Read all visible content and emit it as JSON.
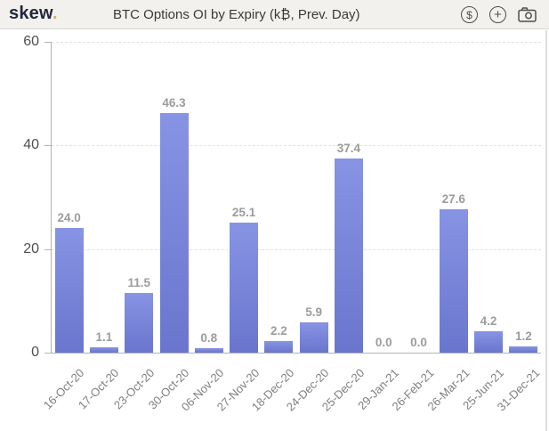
{
  "header": {
    "logo_text": "skew",
    "logo_dot": ".",
    "title": "BTC Options OI by Expiry (k₿, Prev. Day)",
    "icons": [
      {
        "name": "dollar-circle-icon",
        "glyph": "$"
      },
      {
        "name": "plus-circle-icon",
        "glyph": "+"
      },
      {
        "name": "camera-icon"
      }
    ]
  },
  "chart_data": {
    "type": "bar",
    "title": "BTC Options OI by Expiry (k₿, Prev. Day)",
    "categories": [
      "16-Oct-20",
      "17-Oct-20",
      "23-Oct-20",
      "30-Oct-20",
      "06-Nov-20",
      "27-Nov-20",
      "18-Dec-20",
      "24-Dec-20",
      "25-Dec-20",
      "29-Jan-21",
      "26-Feb-21",
      "26-Mar-21",
      "25-Jun-21",
      "31-Dec-21"
    ],
    "values": [
      24.0,
      1.1,
      11.5,
      46.3,
      0.8,
      25.1,
      2.2,
      5.9,
      37.4,
      0.0,
      0.0,
      27.6,
      4.2,
      1.2
    ],
    "value_decimals": 1,
    "xlabel": "",
    "ylabel": "",
    "ylim": [
      0,
      60
    ],
    "yticks": [
      0,
      20,
      40,
      60
    ],
    "grid": "horizontal-dashed",
    "legend": "none",
    "bar_color": "#7b87da",
    "bar_gradient_top": "#8793e3",
    "bar_gradient_bottom": "#6a76cd",
    "value_label_color": "#9c9c9c",
    "axis_color": "#b3b3b3"
  }
}
